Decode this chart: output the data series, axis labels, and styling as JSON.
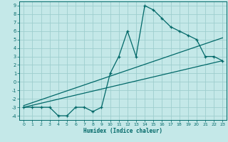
{
  "xlabel": "Humidex (Indice chaleur)",
  "bg_color": "#c4e8e8",
  "grid_color": "#9ecece",
  "line_color": "#006868",
  "xlim": [
    -0.5,
    23.5
  ],
  "ylim": [
    -4.5,
    9.5
  ],
  "xticks": [
    0,
    1,
    2,
    3,
    4,
    5,
    6,
    7,
    8,
    9,
    10,
    11,
    12,
    13,
    14,
    15,
    16,
    17,
    18,
    19,
    20,
    21,
    22,
    23
  ],
  "yticks": [
    -4,
    -3,
    -2,
    -1,
    0,
    1,
    2,
    3,
    4,
    5,
    6,
    7,
    8,
    9
  ],
  "data_x": [
    0,
    1,
    2,
    3,
    4,
    5,
    6,
    7,
    8,
    9,
    10,
    11,
    12,
    13,
    14,
    15,
    16,
    17,
    18,
    19,
    20,
    21,
    22,
    23
  ],
  "data_y": [
    -3,
    -3,
    -3,
    -3,
    -4,
    -4,
    -3,
    -3,
    -3.5,
    -3,
    1,
    3,
    6,
    3,
    9,
    8.5,
    7.5,
    6.5,
    6,
    5.5,
    5,
    3,
    3,
    2.5
  ],
  "line1_x": [
    0,
    23
  ],
  "line1_y": [
    -3.0,
    2.5
  ],
  "line2_x": [
    0,
    23
  ],
  "line2_y": [
    -2.8,
    5.2
  ]
}
